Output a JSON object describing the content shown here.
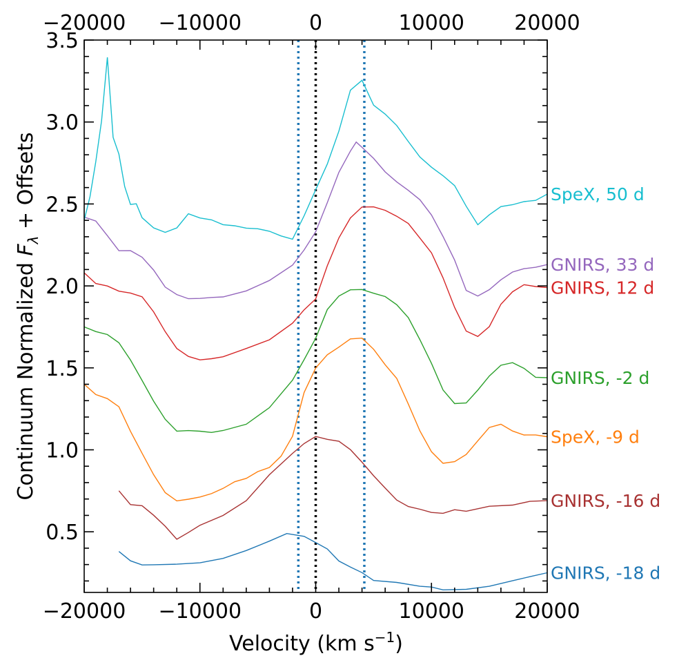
{
  "chart_data": {
    "type": "line",
    "title": "",
    "xlabel": "Velocity (km s",
    "xlabel_sup": "−1",
    "xlabel_close": ")",
    "ylabel_pre": "Continuum Normalized ",
    "ylabel_var": "F",
    "ylabel_sub": "λ",
    "ylabel_post": " + Offsets",
    "xlim": [
      -20000,
      20000
    ],
    "ylim": [
      0.13,
      3.5
    ],
    "x_ticks": [
      -20000,
      -10000,
      0,
      10000,
      20000
    ],
    "x_tick_labels": [
      "−20000",
      "−10000",
      "0",
      "10000",
      "20000"
    ],
    "top_tick_labels": [
      "−20000",
      "−10000",
      "0",
      "10000",
      "20000"
    ],
    "y_ticks": [
      0.5,
      1.0,
      1.5,
      2.0,
      2.5,
      3.0,
      3.5
    ],
    "y_tick_labels": [
      "0.5",
      "1.0",
      "1.5",
      "2.0",
      "2.5",
      "3.0",
      "3.5"
    ],
    "grid": false,
    "vlines": [
      {
        "x": -1500,
        "style": "dotted",
        "color": "#1f77b4"
      },
      {
        "x": 0,
        "style": "dotted",
        "color": "#000000"
      },
      {
        "x": 4200,
        "style": "dotted",
        "color": "#1f77b4"
      }
    ],
    "series": [
      {
        "name": "GNIRS, -18 d",
        "color": "#1f77b4",
        "x": [
          -17000,
          -16000,
          -15000,
          -14000,
          -12000,
          -10000,
          -8000,
          -6000,
          -4000,
          -2500,
          -1000,
          0,
          1000,
          2000,
          3000,
          4000,
          5000,
          7000,
          9000,
          10000,
          11000,
          13000,
          15000,
          17000,
          18500,
          20000
        ],
        "y": [
          0.38,
          0.33,
          0.29,
          0.3,
          0.3,
          0.31,
          0.34,
          0.38,
          0.44,
          0.49,
          0.48,
          0.44,
          0.39,
          0.33,
          0.29,
          0.25,
          0.21,
          0.19,
          0.17,
          0.16,
          0.15,
          0.15,
          0.17,
          0.2,
          0.22,
          0.25
        ]
      },
      {
        "name": "GNIRS, -16 d",
        "color": "#a83232",
        "x": [
          -17000,
          -16000,
          -15000,
          -14000,
          -13000,
          -12000,
          -11000,
          -10000,
          -8000,
          -6000,
          -4000,
          -2000,
          -1000,
          0,
          1000,
          2000,
          3000,
          4000,
          5000,
          6000,
          7000,
          8000,
          9000,
          10000,
          11000,
          12000,
          13000,
          15000,
          17000,
          18500,
          20000
        ],
        "y": [
          0.75,
          0.67,
          0.66,
          0.6,
          0.53,
          0.46,
          0.5,
          0.54,
          0.6,
          0.69,
          0.84,
          0.98,
          1.04,
          1.08,
          1.07,
          1.05,
          1.0,
          0.92,
          0.85,
          0.77,
          0.7,
          0.66,
          0.63,
          0.62,
          0.62,
          0.63,
          0.63,
          0.65,
          0.67,
          0.68,
          0.69
        ]
      },
      {
        "name": "SpeX, -9 d",
        "color": "#ff7f0e",
        "x": [
          -20000,
          -19000,
          -18000,
          -17000,
          -16000,
          -15000,
          -14000,
          -13000,
          -12000,
          -11000,
          -10000,
          -9000,
          -8000,
          -7000,
          -6000,
          -5000,
          -4000,
          -3000,
          -2000,
          -1000,
          0,
          1000,
          2000,
          3000,
          4000,
          5000,
          6000,
          7000,
          8000,
          9000,
          10000,
          11000,
          12000,
          13000,
          14000,
          15000,
          16000,
          17000,
          18000,
          19000,
          20000
        ],
        "y": [
          1.4,
          1.33,
          1.31,
          1.26,
          1.12,
          0.98,
          0.85,
          0.74,
          0.69,
          0.7,
          0.71,
          0.74,
          0.77,
          0.8,
          0.83,
          0.87,
          0.9,
          0.96,
          1.09,
          1.35,
          1.5,
          1.58,
          1.62,
          1.67,
          1.68,
          1.62,
          1.52,
          1.43,
          1.28,
          1.12,
          0.98,
          0.92,
          0.92,
          0.97,
          1.05,
          1.14,
          1.16,
          1.12,
          1.09,
          1.09,
          1.08
        ]
      },
      {
        "name": "GNIRS, -2 d",
        "color": "#2ca02c",
        "x": [
          -20000,
          -19000,
          -18000,
          -17000,
          -16000,
          -15000,
          -14000,
          -13000,
          -12000,
          -11000,
          -10000,
          -9000,
          -8000,
          -6000,
          -4000,
          -2000,
          -1000,
          0,
          1000,
          2000,
          3000,
          4000,
          5000,
          6000,
          7000,
          8000,
          9000,
          10000,
          11000,
          12000,
          13000,
          14000,
          15000,
          16000,
          17000,
          18000,
          19000,
          20000
        ],
        "y": [
          1.75,
          1.72,
          1.7,
          1.66,
          1.55,
          1.43,
          1.3,
          1.18,
          1.12,
          1.11,
          1.11,
          1.11,
          1.12,
          1.15,
          1.25,
          1.42,
          1.55,
          1.68,
          1.85,
          1.93,
          1.97,
          1.98,
          1.96,
          1.93,
          1.88,
          1.8,
          1.68,
          1.52,
          1.37,
          1.28,
          1.29,
          1.37,
          1.45,
          1.51,
          1.53,
          1.5,
          1.45,
          1.44
        ]
      },
      {
        "name": "GNIRS, 12 d",
        "color": "#d62728",
        "x": [
          -20000,
          -19000,
          -18000,
          -17000,
          -16000,
          -15000,
          -14000,
          -13000,
          -12000,
          -11000,
          -10000,
          -9000,
          -8000,
          -6000,
          -4000,
          -2000,
          -1000,
          0,
          1000,
          2000,
          3000,
          4000,
          5000,
          6000,
          7000,
          8000,
          9000,
          10000,
          11000,
          12000,
          13000,
          14000,
          15000,
          16000,
          17000,
          18000,
          19000,
          20000
        ],
        "y": [
          2.08,
          2.02,
          2.0,
          1.96,
          1.95,
          1.93,
          1.85,
          1.72,
          1.61,
          1.57,
          1.55,
          1.56,
          1.57,
          1.61,
          1.67,
          1.77,
          1.85,
          1.92,
          2.12,
          2.3,
          2.42,
          2.48,
          2.49,
          2.46,
          2.43,
          2.38,
          2.3,
          2.2,
          2.05,
          1.87,
          1.72,
          1.69,
          1.76,
          1.88,
          1.97,
          2.01,
          2.0,
          1.99
        ]
      },
      {
        "name": "GNIRS, 33 d",
        "color": "#9467bd",
        "x": [
          -20000,
          -19000,
          -18000,
          -17000,
          -16000,
          -15000,
          -14000,
          -13000,
          -12000,
          -11000,
          -10000,
          -9000,
          -8000,
          -6000,
          -4000,
          -2000,
          -1000,
          0,
          1000,
          2000,
          3000,
          3500,
          4000,
          5000,
          6000,
          7000,
          8000,
          9000,
          10000,
          11000,
          12000,
          13000,
          14000,
          15000,
          16000,
          17000,
          18000,
          19000,
          20000
        ],
        "y": [
          2.42,
          2.39,
          2.3,
          2.22,
          2.21,
          2.17,
          2.1,
          2.0,
          1.95,
          1.93,
          1.93,
          1.93,
          1.94,
          1.97,
          2.03,
          2.13,
          2.22,
          2.33,
          2.5,
          2.7,
          2.83,
          2.88,
          2.85,
          2.78,
          2.7,
          2.64,
          2.58,
          2.52,
          2.44,
          2.31,
          2.16,
          1.98,
          1.94,
          1.98,
          2.04,
          2.08,
          2.11,
          2.12,
          2.13
        ]
      },
      {
        "name": "SpeX, 50 d",
        "color": "#17becf",
        "x": [
          -20000,
          -19500,
          -19000,
          -18500,
          -18000,
          -17500,
          -17000,
          -16500,
          -16000,
          -15500,
          -15000,
          -14000,
          -13000,
          -12000,
          -11000,
          -10000,
          -9000,
          -8000,
          -7000,
          -6000,
          -5000,
          -4000,
          -3000,
          -2000,
          -1000,
          0,
          1000,
          2000,
          3000,
          4000,
          5000,
          6000,
          7000,
          8000,
          9000,
          10000,
          11000,
          12000,
          13000,
          14000,
          15000,
          16000,
          17000,
          18000,
          19000,
          20000
        ],
        "y": [
          2.4,
          2.55,
          2.75,
          3.0,
          3.4,
          2.9,
          2.8,
          2.6,
          2.5,
          2.5,
          2.42,
          2.36,
          2.33,
          2.36,
          2.44,
          2.42,
          2.4,
          2.38,
          2.37,
          2.36,
          2.35,
          2.34,
          2.3,
          2.28,
          2.43,
          2.58,
          2.75,
          2.95,
          3.2,
          3.25,
          3.1,
          3.05,
          2.98,
          2.88,
          2.78,
          2.72,
          2.68,
          2.62,
          2.48,
          2.38,
          2.43,
          2.48,
          2.5,
          2.51,
          2.53,
          2.56
        ]
      }
    ]
  }
}
